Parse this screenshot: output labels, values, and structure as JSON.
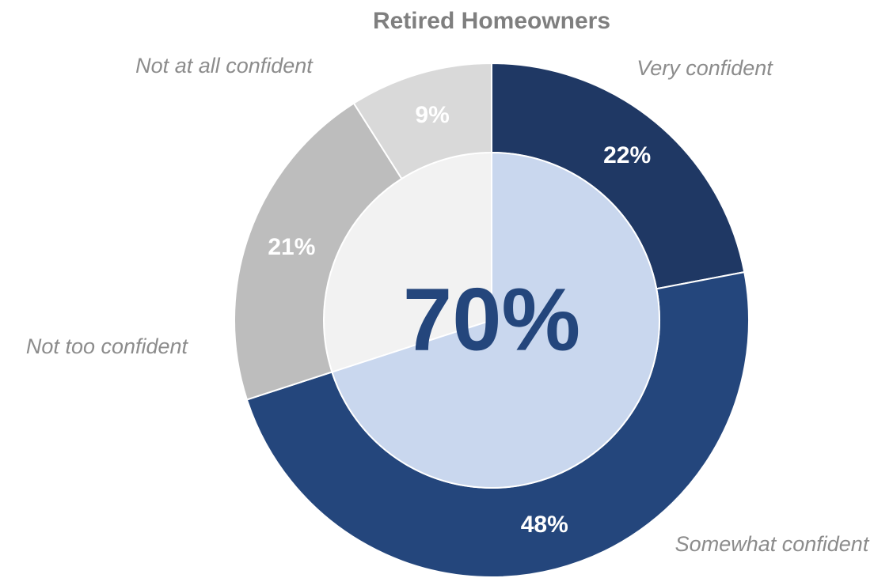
{
  "chart_data": {
    "type": "donut",
    "title": "Retired Homeowners",
    "categories": [
      "Very confident",
      "Somewhat confident",
      "Not too confident",
      "Not at all confident"
    ],
    "values": [
      22,
      48,
      21,
      9
    ],
    "value_labels": [
      "22%",
      "48%",
      "21%",
      "9%"
    ],
    "colors": [
      "#1f3864",
      "#24467c",
      "#bdbdbd",
      "#d9d9d9"
    ],
    "inner": {
      "values": [
        70
      ],
      "value_labels": [
        "70%"
      ],
      "colors": [
        "#c9d7ee"
      ]
    }
  }
}
